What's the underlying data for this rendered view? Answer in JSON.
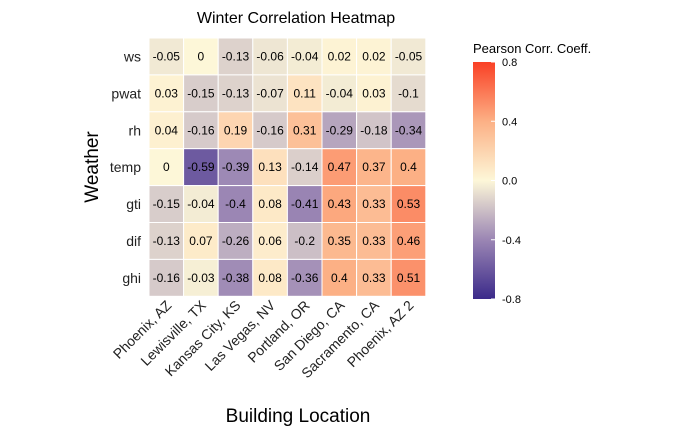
{
  "chart_data": {
    "type": "heatmap",
    "title": "Winter Correlation Heatmap",
    "xlabel": "Building Location",
    "ylabel": "Weather",
    "x_categories": [
      "Phoenix, AZ",
      "Lewisville, TX",
      "Kansas City, KS",
      "Las Vegas, NV",
      "Portland, OR",
      "San Diego, CA",
      "Sacramento, CA",
      "Phoenix, AZ 2"
    ],
    "y_categories": [
      "ws",
      "pwat",
      "rh",
      "temp",
      "gti",
      "dif",
      "ghi"
    ],
    "values": [
      [
        -0.05,
        0,
        -0.13,
        -0.06,
        -0.04,
        0.02,
        0.02,
        -0.05
      ],
      [
        0.03,
        -0.15,
        -0.13,
        -0.07,
        0.11,
        -0.04,
        0.03,
        -0.1
      ],
      [
        0.04,
        -0.16,
        0.19,
        -0.16,
        0.31,
        -0.29,
        -0.18,
        -0.34
      ],
      [
        0,
        -0.59,
        -0.39,
        0.13,
        -0.14,
        0.47,
        0.37,
        0.4
      ],
      [
        -0.15,
        -0.04,
        -0.4,
        0.08,
        -0.41,
        0.43,
        0.33,
        0.53
      ],
      [
        -0.13,
        0.07,
        -0.26,
        0.06,
        -0.2,
        0.35,
        0.33,
        0.46
      ],
      [
        -0.16,
        -0.03,
        -0.38,
        0.08,
        -0.36,
        0.4,
        0.33,
        0.51
      ]
    ],
    "legend": {
      "title": "Pearson Corr. Coeff.",
      "range": [
        -0.8,
        0.8
      ],
      "ticks": [
        "0.8",
        "0.4",
        "0.0",
        "-0.4",
        "-0.8"
      ],
      "tick_values": [
        0.8,
        0.4,
        0.0,
        -0.4,
        -0.8
      ],
      "placement": "right"
    },
    "colors": {
      "low": "#3b2a8a",
      "mid": "#fdf7d8",
      "high": "#fa4025",
      "cell_border": "#ffffff"
    }
  }
}
